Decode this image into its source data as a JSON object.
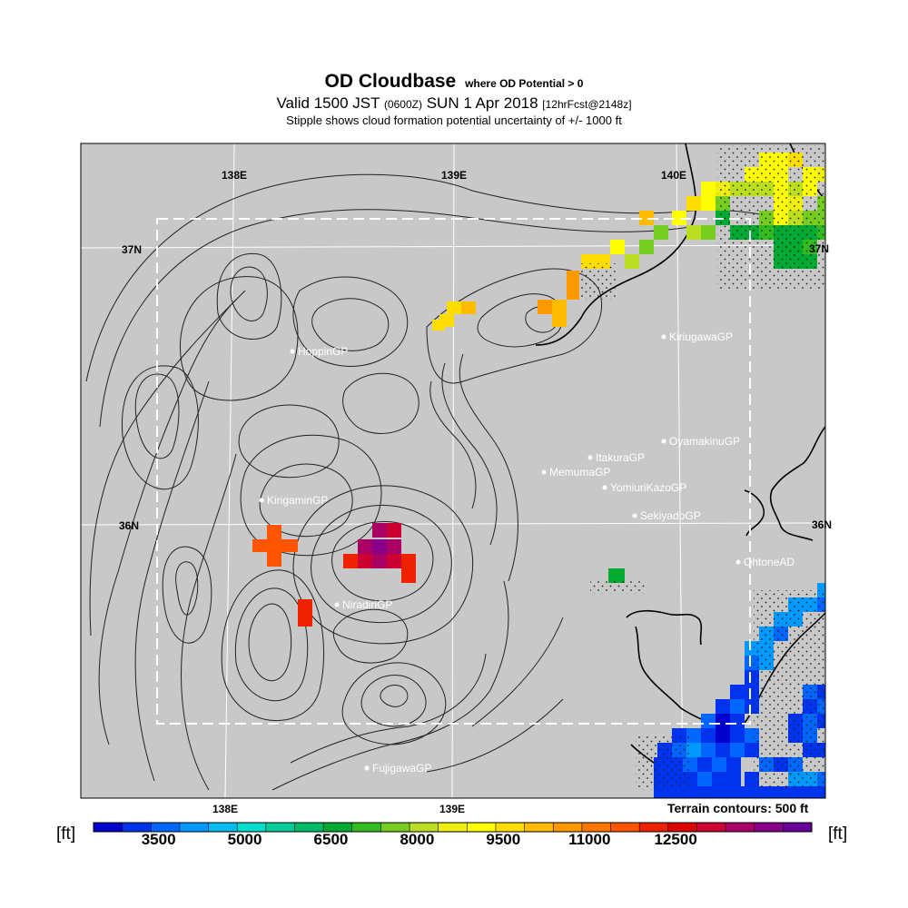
{
  "title": {
    "main": "OD Cloudbase",
    "main_suffix": "where OD Potential > 0",
    "valid_prefix": "Valid 1500 JST",
    "valid_zulu": "(0600Z)",
    "valid_date": "SUN 1 Apr 2018",
    "forecast": "[12hrFcst@2148z]",
    "subtitle": "Stipple shows cloud formation potential uncertainty of +/- 1000 ft"
  },
  "axes": {
    "lon_top": [
      "138E",
      "139E",
      "140E"
    ],
    "lon_bottom": [
      "138E",
      "139E"
    ],
    "lat_left": [
      "37N",
      "36N"
    ],
    "lat_right": [
      "37N",
      "36N"
    ]
  },
  "terrain_note": "Terrain contours: 500 ft",
  "stations": [
    {
      "name": "KiriugawaGP"
    },
    {
      "name": "HoppinGP"
    },
    {
      "name": "OyamakinuGP"
    },
    {
      "name": "ItakuraGP"
    },
    {
      "name": "MemumaGP"
    },
    {
      "name": "YomiuriKazoGP"
    },
    {
      "name": "KirigaminGP"
    },
    {
      "name": "SekiyadoGP"
    },
    {
      "name": "OhtoneAD"
    },
    {
      "name": "NiradiriGP"
    },
    {
      "name": "FujigawaGP"
    }
  ],
  "colorbar": {
    "unit_left": "[ft]",
    "unit_right": "[ft]",
    "labels": [
      "3500",
      "5000",
      "6500",
      "8000",
      "9500",
      "11000",
      "12500"
    ],
    "colors": [
      "#0000cc",
      "#0033ee",
      "#0066ff",
      "#0099ff",
      "#00bbee",
      "#00ddcc",
      "#00cc99",
      "#00bb66",
      "#00aa33",
      "#33bb22",
      "#77cc22",
      "#bbdd22",
      "#eeee11",
      "#ffff00",
      "#ffdd00",
      "#ffbb00",
      "#ff9900",
      "#ff7700",
      "#ff5500",
      "#ee2200",
      "#dd0000",
      "#cc0033",
      "#aa0066",
      "#880088",
      "#660099"
    ]
  }
}
